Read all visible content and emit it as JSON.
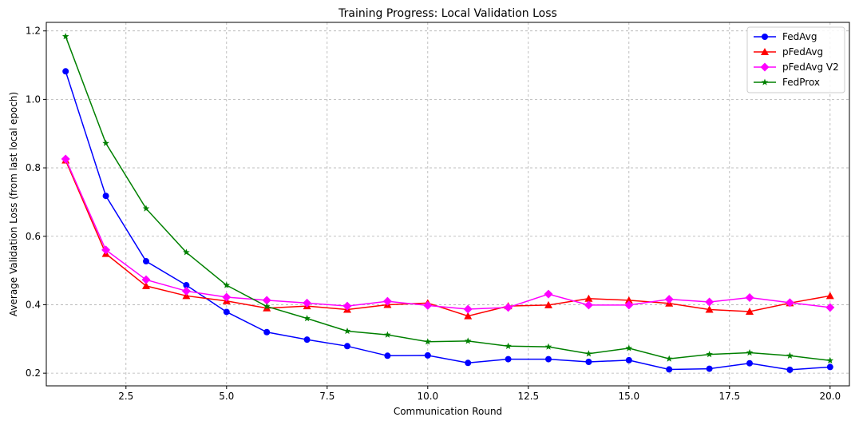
{
  "chart_data": {
    "type": "line",
    "title": "Training Progress: Local Validation Loss",
    "xlabel": "Communication Round",
    "ylabel": "Average Validation Loss (from last local epoch)",
    "xlim": [
      0.52,
      20.48
    ],
    "ylim": [
      0.163,
      1.225
    ],
    "xticks": [
      2.5,
      5.0,
      7.5,
      10.0,
      12.5,
      15.0,
      17.5,
      20.0
    ],
    "xtick_labels": [
      "2.5",
      "5.0",
      "7.5",
      "10.0",
      "12.5",
      "15.0",
      "17.5",
      "20.0"
    ],
    "yticks": [
      0.2,
      0.4,
      0.6,
      0.8,
      1.0,
      1.2
    ],
    "ytick_labels": [
      "0.2",
      "0.4",
      "0.6",
      "0.8",
      "1.0",
      "1.2"
    ],
    "grid": true,
    "legend_position": "top-right",
    "x": [
      1,
      2,
      3,
      4,
      5,
      6,
      7,
      8,
      9,
      10,
      11,
      12,
      13,
      14,
      15,
      16,
      17,
      18,
      19,
      20
    ],
    "series": [
      {
        "name": "FedAvg",
        "color": "#0000ff",
        "marker": "circle",
        "values": [
          1.082,
          0.718,
          0.527,
          0.457,
          0.379,
          0.32,
          0.298,
          0.279,
          0.251,
          0.252,
          0.23,
          0.241,
          0.241,
          0.233,
          0.238,
          0.211,
          0.213,
          0.229,
          0.21,
          0.218
        ]
      },
      {
        "name": "pFedAvg",
        "color": "#ff0000",
        "marker": "triangle",
        "values": [
          0.822,
          0.549,
          0.455,
          0.426,
          0.411,
          0.39,
          0.396,
          0.386,
          0.4,
          0.405,
          0.367,
          0.396,
          0.399,
          0.418,
          0.413,
          0.404,
          0.386,
          0.38,
          0.405,
          0.426
        ]
      },
      {
        "name": "pFedAvg V2",
        "color": "#ff00ff",
        "marker": "diamond",
        "values": [
          0.826,
          0.56,
          0.473,
          0.44,
          0.422,
          0.413,
          0.405,
          0.396,
          0.41,
          0.398,
          0.387,
          0.392,
          0.431,
          0.399,
          0.399,
          0.416,
          0.408,
          0.421,
          0.406,
          0.392
        ]
      },
      {
        "name": "FedProx",
        "color": "#008000",
        "marker": "star",
        "values": [
          1.184,
          0.872,
          0.681,
          0.553,
          0.457,
          0.395,
          0.36,
          0.323,
          0.312,
          0.292,
          0.294,
          0.279,
          0.277,
          0.257,
          0.273,
          0.242,
          0.255,
          0.26,
          0.251,
          0.237
        ]
      }
    ]
  }
}
